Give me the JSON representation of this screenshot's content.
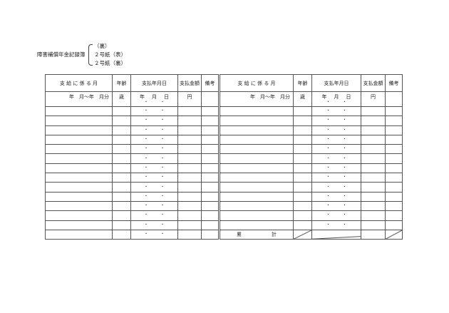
{
  "caption": {
    "main": "障害補償年金記録簿",
    "items": [
      "（裏）",
      "２号紙（表）",
      "２号紙（裏）"
    ]
  },
  "table": {
    "headers": {
      "month": "支 給 に 係 る 月",
      "age": "年齢",
      "pay_date": "支払年月日",
      "amount": "支払金額",
      "remarks": "備考"
    },
    "units": {
      "month": "年　月〜年　月分",
      "age": "歳",
      "pay_date": [
        "年",
        "月",
        "日"
      ],
      "amount": "円"
    },
    "date_separator": "・",
    "total_label": [
      "累",
      "計"
    ],
    "row_count": 14
  }
}
